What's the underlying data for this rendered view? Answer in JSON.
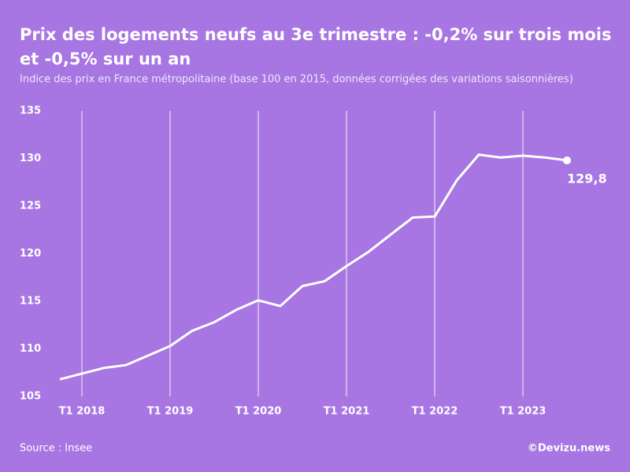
{
  "chart_data": {
    "type": "line",
    "title": [
      "Prix des logements neufs au 3e trimestre : -0,2% sur trois mois",
      "et -0,5% sur un an"
    ],
    "subtitle": "Indice des prix en France métropolitaine (base 100 en 2015, données corrigées des variations saisonnières)",
    "source": "Source : Insee",
    "credit": "©Devizu.news",
    "categories": [
      null,
      "T1 2018",
      null,
      null,
      null,
      "T1 2019",
      null,
      null,
      null,
      "T1 2020",
      null,
      null,
      null,
      "T1 2021",
      null,
      null,
      null,
      "T1 2022",
      null,
      null,
      null,
      "T1 2023",
      null,
      null
    ],
    "series": [
      {
        "name": "Indice",
        "color": "#ffffff",
        "values": [
          106.8,
          107.4,
          108.0,
          108.3,
          109.3,
          110.3,
          111.9,
          112.8,
          114.1,
          115.1,
          114.5,
          116.6,
          117.1,
          118.7,
          120.2,
          122.0,
          123.8,
          123.9,
          127.7,
          130.4,
          130.1,
          130.3,
          130.1,
          129.8
        ],
        "value_labels": [
          null,
          null,
          null,
          null,
          null,
          null,
          null,
          null,
          null,
          null,
          null,
          null,
          null,
          null,
          null,
          null,
          null,
          null,
          null,
          null,
          null,
          null,
          null,
          "129,8"
        ]
      }
    ],
    "ylim": [
      105,
      135
    ],
    "yticks": [
      105,
      110,
      115,
      120,
      125,
      130,
      135
    ],
    "grid": "x"
  }
}
